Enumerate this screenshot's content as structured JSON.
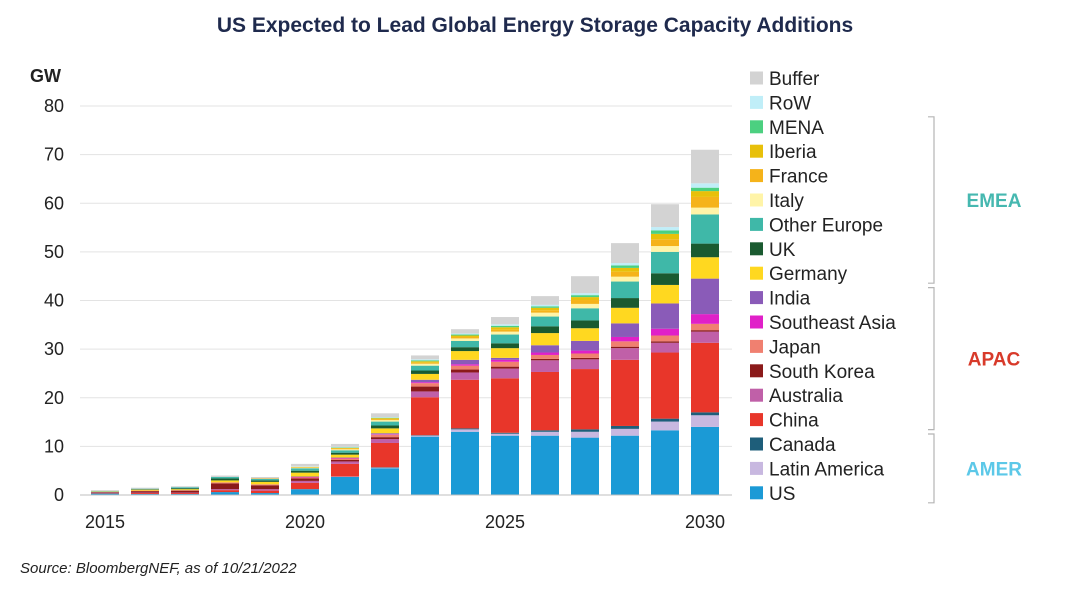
{
  "title": "US Expected to Lead Global Energy Storage Capacity Additions",
  "source": "Source: BloombergNEF, as of 10/21/2022",
  "chart_data": {
    "type": "bar",
    "stacked": true,
    "ylabel": "GW",
    "xlabel": "",
    "ylim": [
      0,
      80
    ],
    "yticks": [
      0,
      10,
      20,
      30,
      40,
      50,
      60,
      70,
      80
    ],
    "grid": true,
    "categories": [
      2015,
      2016,
      2017,
      2018,
      2019,
      2020,
      2021,
      2022,
      2023,
      2024,
      2025,
      2026,
      2027,
      2028,
      2029,
      2030
    ],
    "xtick_labels": [
      "2015",
      "2020",
      "2025",
      "2030"
    ],
    "xtick_positions": [
      2015,
      2020,
      2025,
      2030
    ],
    "series": [
      {
        "name": "US",
        "color": "#1b9ad6",
        "values": [
          0.3,
          0.2,
          0.2,
          0.6,
          0.4,
          1.2,
          3.7,
          5.5,
          12.0,
          13.0,
          12.2,
          12.2,
          11.8,
          12.2,
          13.3,
          14.0
        ]
      },
      {
        "name": "Latin America",
        "color": "#c8b8e0",
        "values": [
          0.0,
          0.0,
          0.0,
          0.0,
          0.0,
          0.0,
          0.1,
          0.1,
          0.2,
          0.5,
          0.4,
          0.8,
          1.2,
          1.4,
          1.8,
          2.4
        ]
      },
      {
        "name": "Canada",
        "color": "#1e5e7a",
        "values": [
          0.0,
          0.0,
          0.0,
          0.0,
          0.0,
          0.0,
          0.0,
          0.1,
          0.1,
          0.2,
          0.2,
          0.3,
          0.5,
          0.6,
          0.6,
          0.6
        ]
      },
      {
        "name": "China",
        "color": "#e8362a",
        "values": [
          0.1,
          0.2,
          0.2,
          0.4,
          0.5,
          1.3,
          2.6,
          5.0,
          7.8,
          10.0,
          11.2,
          12.0,
          12.4,
          13.6,
          13.6,
          14.3
        ]
      },
      {
        "name": "Australia",
        "color": "#c060a8",
        "values": [
          0.1,
          0.1,
          0.1,
          0.2,
          0.3,
          0.4,
          0.5,
          0.8,
          1.2,
          1.5,
          2.0,
          2.4,
          2.0,
          2.4,
          2.0,
          2.3
        ]
      },
      {
        "name": "South Korea",
        "color": "#8b1a1a",
        "values": [
          0.1,
          0.3,
          0.4,
          1.2,
          0.8,
          0.5,
          0.3,
          0.4,
          1.0,
          0.6,
          0.4,
          0.3,
          0.3,
          0.3,
          0.3,
          0.3
        ]
      },
      {
        "name": "Japan",
        "color": "#f08070",
        "values": [
          0.0,
          0.1,
          0.1,
          0.2,
          0.2,
          0.2,
          0.3,
          0.5,
          0.7,
          0.8,
          1.0,
          0.8,
          0.9,
          1.1,
          1.2,
          1.3
        ]
      },
      {
        "name": "Southeast Asia",
        "color": "#e020c8",
        "values": [
          0.0,
          0.0,
          0.0,
          0.0,
          0.0,
          0.1,
          0.1,
          0.1,
          0.2,
          0.3,
          0.4,
          0.5,
          0.6,
          0.9,
          1.4,
          2.0
        ]
      },
      {
        "name": "India",
        "color": "#8a5bb8",
        "values": [
          0.0,
          0.0,
          0.0,
          0.0,
          0.0,
          0.1,
          0.1,
          0.2,
          0.5,
          0.9,
          0.4,
          1.5,
          2.0,
          2.8,
          5.2,
          7.3
        ]
      },
      {
        "name": "Germany",
        "color": "#ffd820",
        "values": [
          0.1,
          0.2,
          0.2,
          0.4,
          0.5,
          0.8,
          0.6,
          1.0,
          1.2,
          1.8,
          2.0,
          2.5,
          2.6,
          3.2,
          3.8,
          4.4
        ]
      },
      {
        "name": "UK",
        "color": "#1a5a30",
        "values": [
          0.0,
          0.1,
          0.2,
          0.4,
          0.3,
          0.4,
          0.4,
          0.6,
          0.7,
          0.8,
          1.0,
          1.4,
          1.6,
          2.0,
          2.4,
          2.8
        ]
      },
      {
        "name": "Other Europe",
        "color": "#3fb8a8",
        "values": [
          0.1,
          0.1,
          0.2,
          0.3,
          0.3,
          0.5,
          0.5,
          0.8,
          1.0,
          1.3,
          1.8,
          2.0,
          2.5,
          3.4,
          4.4,
          6.0
        ]
      },
      {
        "name": "Italy",
        "color": "#fff4a8",
        "values": [
          0.0,
          0.0,
          0.0,
          0.0,
          0.0,
          0.1,
          0.2,
          0.3,
          0.4,
          0.5,
          0.6,
          0.8,
          0.9,
          1.0,
          1.2,
          1.4
        ]
      },
      {
        "name": "France",
        "color": "#f5b31a",
        "values": [
          0.0,
          0.0,
          0.0,
          0.0,
          0.1,
          0.1,
          0.2,
          0.2,
          0.2,
          0.3,
          0.4,
          0.5,
          0.8,
          1.0,
          1.4,
          2.2
        ]
      },
      {
        "name": "Iberia",
        "color": "#e8c00a",
        "values": [
          0.0,
          0.0,
          0.0,
          0.0,
          0.0,
          0.1,
          0.1,
          0.2,
          0.3,
          0.3,
          0.5,
          0.5,
          0.6,
          0.8,
          1.1,
          1.2
        ]
      },
      {
        "name": "MENA",
        "color": "#4cd080",
        "values": [
          0.0,
          0.0,
          0.0,
          0.0,
          0.0,
          0.0,
          0.1,
          0.1,
          0.2,
          0.2,
          0.3,
          0.3,
          0.4,
          0.5,
          0.7,
          0.7
        ]
      },
      {
        "name": "RoW",
        "color": "#c0eef8",
        "values": [
          0.0,
          0.0,
          0.0,
          0.0,
          0.0,
          0.1,
          0.1,
          0.1,
          0.2,
          0.2,
          0.3,
          0.3,
          0.4,
          0.5,
          0.7,
          0.9
        ]
      },
      {
        "name": "Buffer",
        "color": "#d3d3d3",
        "values": [
          0.2,
          0.2,
          0.2,
          0.3,
          0.3,
          0.5,
          0.6,
          0.8,
          0.8,
          0.9,
          1.5,
          1.8,
          3.5,
          4.1,
          4.7,
          6.9
        ]
      }
    ],
    "legend_order": [
      "Buffer",
      "RoW",
      "MENA",
      "Iberia",
      "France",
      "Italy",
      "Other Europe",
      "UK",
      "Germany",
      "India",
      "Southeast Asia",
      "Japan",
      "South Korea",
      "Australia",
      "China",
      "Canada",
      "Latin America",
      "US"
    ],
    "legend_placement": "right",
    "groups": [
      {
        "label": "EMEA",
        "color": "#46b8b0",
        "members": [
          "MENA",
          "Iberia",
          "France",
          "Italy",
          "Other Europe",
          "UK",
          "Germany"
        ]
      },
      {
        "label": "APAC",
        "color": "#d83a2a",
        "members": [
          "India",
          "Southeast Asia",
          "Japan",
          "South Korea",
          "Australia",
          "China"
        ]
      },
      {
        "label": "AMER",
        "color": "#5cc8e8",
        "members": [
          "Canada",
          "Latin America",
          "US"
        ]
      }
    ]
  }
}
